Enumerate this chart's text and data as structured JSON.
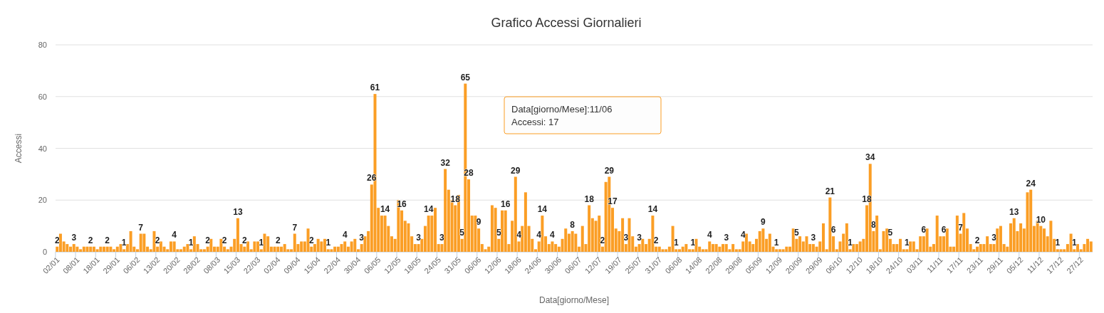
{
  "chart_data": {
    "type": "bar",
    "title": "Grafico Accessi Giornalieri",
    "xlabel": "Data[giorno/Mese]",
    "ylabel": "Accessi",
    "categories": [
      "02/01",
      null,
      null,
      null,
      null,
      null,
      "08/01",
      null,
      null,
      null,
      null,
      null,
      "18/01",
      null,
      null,
      null,
      null,
      null,
      "29/01",
      null,
      null,
      null,
      null,
      null,
      "06/02",
      null,
      null,
      null,
      null,
      null,
      "13/02",
      null,
      null,
      null,
      null,
      null,
      "20/02",
      null,
      null,
      null,
      null,
      null,
      "28/02",
      null,
      null,
      null,
      null,
      null,
      "08/03",
      null,
      null,
      null,
      null,
      null,
      "15/03",
      null,
      null,
      null,
      null,
      null,
      "22/03",
      null,
      null,
      null,
      null,
      null,
      "02/04",
      null,
      null,
      null,
      null,
      null,
      "09/04",
      null,
      null,
      null,
      null,
      null,
      "15/04",
      null,
      null,
      null,
      null,
      null,
      "22/04",
      null,
      null,
      null,
      null,
      null,
      "30/04",
      null,
      null,
      null,
      null,
      null,
      "06/05",
      null,
      null,
      null,
      null,
      null,
      "12/05",
      null,
      null,
      null,
      null,
      null,
      "18/05",
      null,
      null,
      null,
      null,
      null,
      "24/05",
      null,
      null,
      null,
      null,
      null,
      "31/05",
      null,
      null,
      null,
      null,
      null,
      "06/06",
      null,
      null,
      null,
      null,
      null,
      "12/06",
      null,
      null,
      null,
      null,
      null,
      "18/06",
      null,
      null,
      null,
      null,
      null,
      "24/06",
      null,
      null,
      null,
      null,
      null,
      "30/06",
      null,
      null,
      null,
      null,
      null,
      "06/07",
      null,
      null,
      null,
      null,
      null,
      "12/07",
      null,
      null,
      null,
      null,
      null,
      "19/07",
      null,
      null,
      null,
      null,
      null,
      "25/07",
      null,
      null,
      null,
      null,
      null,
      "31/07",
      null,
      null,
      null,
      null,
      null,
      "06/08",
      null,
      null,
      null,
      null,
      null,
      "14/08",
      null,
      null,
      null,
      null,
      null,
      "22/08",
      null,
      null,
      null,
      null,
      null,
      "29/08",
      null,
      null,
      null,
      null,
      null,
      "05/09",
      null,
      null,
      null,
      null,
      null,
      "12/09",
      null,
      null,
      null,
      null,
      null,
      "20/09",
      null,
      null,
      null,
      null,
      null,
      "29/09",
      null,
      null,
      null,
      null,
      null,
      "06/10",
      null,
      null,
      null,
      null,
      null,
      "12/10",
      null,
      null,
      null,
      null,
      null,
      "18/10",
      null,
      null,
      null,
      null,
      null,
      "24/10",
      null,
      null,
      null,
      null,
      null,
      "03/11",
      null,
      null,
      null,
      null,
      null,
      "11/11",
      null,
      null,
      null,
      null,
      null,
      "17/11",
      null,
      null,
      null,
      null,
      null,
      "23/11",
      null,
      null,
      null,
      null,
      null,
      "29/11",
      null,
      null,
      null,
      null,
      null,
      "05/12",
      null,
      null,
      null,
      null,
      null,
      "11/12",
      null,
      null,
      null,
      null,
      null,
      "17/12",
      null,
      null,
      null,
      null,
      null,
      "27/12",
      null,
      null,
      null
    ],
    "series": [
      {
        "color": "#fb9e25",
        "values": [
          2,
          7,
          4,
          3,
          2,
          3,
          2,
          1,
          2,
          2,
          2,
          2,
          1,
          2,
          2,
          2,
          2,
          1,
          2,
          3,
          1,
          3,
          8,
          2,
          1,
          7,
          7,
          2,
          1,
          8,
          2,
          4,
          2,
          1,
          4,
          4,
          1,
          1,
          2,
          3,
          1,
          6,
          3,
          1,
          1,
          2,
          5,
          2,
          2,
          5,
          2,
          1,
          2,
          5,
          13,
          3,
          2,
          4,
          1,
          4,
          4,
          1,
          7,
          6,
          2,
          2,
          2,
          2,
          3,
          1,
          1,
          7,
          3,
          4,
          4,
          9,
          2,
          3,
          5,
          4,
          5,
          1,
          1,
          2,
          2,
          3,
          4,
          2,
          4,
          5,
          1,
          3,
          6,
          8,
          26,
          61,
          17,
          14,
          14,
          10,
          6,
          5,
          20,
          16,
          12,
          11,
          6,
          3,
          3,
          5,
          10,
          14,
          14,
          17,
          3,
          3,
          32,
          24,
          20,
          18,
          22,
          5,
          65,
          28,
          14,
          14,
          9,
          3,
          1,
          2,
          18,
          17,
          5,
          16,
          16,
          3,
          12,
          29,
          4,
          10,
          23,
          10,
          5,
          1,
          4,
          14,
          6,
          3,
          4,
          3,
          2,
          5,
          9,
          7,
          8,
          7,
          2,
          10,
          3,
          18,
          13,
          12,
          14,
          2,
          27,
          29,
          17,
          9,
          8,
          13,
          3,
          13,
          6,
          2,
          3,
          5,
          3,
          5,
          14,
          2,
          2,
          1,
          1,
          2,
          10,
          1,
          1,
          2,
          3,
          1,
          1,
          5,
          2,
          1,
          1,
          4,
          3,
          3,
          2,
          3,
          3,
          1,
          3,
          1,
          1,
          4,
          7,
          4,
          3,
          5,
          8,
          9,
          5,
          7,
          2,
          1,
          1,
          1,
          2,
          2,
          9,
          5,
          6,
          4,
          6,
          3,
          3,
          2,
          4,
          11,
          1,
          21,
          6,
          1,
          4,
          7,
          11,
          1,
          3,
          3,
          4,
          5,
          18,
          34,
          8,
          14,
          1,
          8,
          9,
          5,
          3,
          3,
          5,
          1,
          1,
          4,
          4,
          1,
          6,
          6,
          9,
          2,
          3,
          14,
          6,
          6,
          9,
          2,
          2,
          14,
          7,
          15,
          9,
          3,
          1,
          2,
          3,
          3,
          6,
          3,
          3,
          9,
          10,
          3,
          2,
          11,
          13,
          8,
          11,
          9,
          23,
          24,
          10,
          12,
          10,
          9,
          6,
          12,
          5,
          1,
          1,
          1,
          3,
          7,
          1,
          3,
          1,
          3,
          5,
          4
        ],
        "value_labels": [
          "2",
          null,
          null,
          null,
          null,
          "3",
          null,
          null,
          null,
          null,
          "2",
          null,
          null,
          null,
          null,
          "2",
          null,
          null,
          null,
          null,
          "1",
          null,
          null,
          null,
          null,
          "7",
          null,
          null,
          null,
          null,
          "2",
          null,
          null,
          null,
          null,
          "4",
          null,
          null,
          null,
          null,
          "1",
          null,
          null,
          null,
          null,
          "2",
          null,
          null,
          null,
          null,
          "2",
          null,
          null,
          null,
          "13",
          null,
          "2",
          null,
          null,
          null,
          null,
          "1",
          null,
          null,
          null,
          null,
          "2",
          null,
          null,
          null,
          null,
          "7",
          null,
          null,
          null,
          null,
          "2",
          null,
          null,
          null,
          null,
          "1",
          null,
          null,
          null,
          null,
          "4",
          null,
          null,
          null,
          null,
          "3",
          null,
          null,
          "26",
          "61",
          null,
          null,
          "14",
          null,
          null,
          null,
          null,
          "16",
          null,
          null,
          null,
          null,
          "3",
          null,
          null,
          "14",
          null,
          null,
          null,
          "3",
          "32",
          null,
          null,
          "18",
          null,
          "5",
          "65",
          "28",
          null,
          null,
          "9",
          null,
          null,
          null,
          null,
          null,
          "5",
          null,
          "16",
          null,
          null,
          "29",
          "4",
          null,
          null,
          null,
          null,
          null,
          "4",
          "14",
          null,
          null,
          "4",
          null,
          null,
          null,
          null,
          null,
          "8",
          null,
          null,
          null,
          null,
          "18",
          null,
          null,
          null,
          "2",
          null,
          "29",
          "17",
          null,
          null,
          null,
          "3",
          null,
          null,
          null,
          "3",
          null,
          null,
          null,
          "14",
          "2",
          null,
          null,
          null,
          null,
          null,
          "1",
          null,
          null,
          null,
          null,
          "1",
          null,
          null,
          null,
          null,
          "4",
          null,
          null,
          null,
          null,
          "3",
          null,
          null,
          null,
          null,
          "4",
          null,
          null,
          null,
          null,
          null,
          "9",
          null,
          null,
          null,
          "1",
          null,
          null,
          null,
          null,
          null,
          "5",
          null,
          null,
          null,
          null,
          "3",
          null,
          null,
          null,
          null,
          "21",
          "6",
          null,
          null,
          null,
          null,
          "1",
          null,
          null,
          null,
          null,
          "18",
          "34",
          "8",
          null,
          null,
          null,
          null,
          "5",
          null,
          null,
          null,
          null,
          "1",
          null,
          null,
          null,
          null,
          "6",
          null,
          null,
          null,
          null,
          null,
          "6",
          null,
          null,
          null,
          null,
          "7",
          null,
          null,
          null,
          null,
          "2",
          null,
          null,
          null,
          null,
          "3",
          null,
          null,
          null,
          null,
          null,
          "13",
          null,
          null,
          null,
          null,
          "24",
          null,
          null,
          "10",
          null,
          null,
          null,
          null,
          "1",
          null,
          null,
          null,
          null,
          "1",
          null,
          null,
          null,
          null,
          null
        ]
      }
    ],
    "ylim": [
      0,
      80
    ],
    "yticks": [
      0,
      20,
      40,
      60,
      80
    ],
    "grid": "y",
    "annotations": [
      "Data[giorno/Mese]:11/06",
      "Accessi: 17"
    ]
  }
}
